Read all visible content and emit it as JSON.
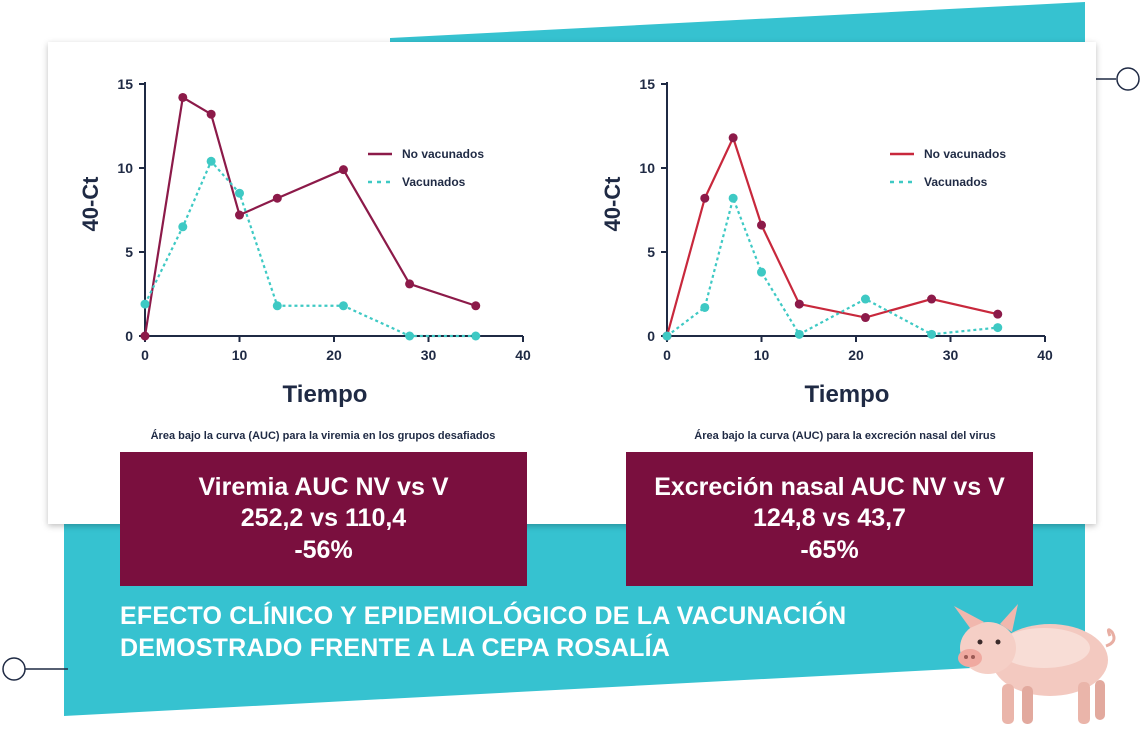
{
  "charts": {
    "left": {
      "caption": "Área bajo la curva (AUC) para la viremia en los grupos desafiados"
    },
    "right": {
      "caption": "Área bajo la curva (AUC) para la excreción nasal del virus"
    }
  },
  "auc": {
    "left": {
      "line1": "Viremia AUC NV vs V",
      "line2": "252,2 vs 110,4",
      "line3": "-56%"
    },
    "right": {
      "line1": "Excreción nasal AUC NV vs V",
      "line2": "124,8 vs 43,7",
      "line3": "-65%"
    }
  },
  "headline": {
    "line1": "EFECTO CLÍNICO Y EPIDEMIOLÓGICO DE LA VACUNACIÓN",
    "line2": "DEMOSTRADO FRENTE A LA CEPA ROSALÍA"
  },
  "colors": {
    "teal": "#36c2d0",
    "unvaccinated": "#8c1a49",
    "unvaccinated_right": "#c8283c",
    "vaccinated": "#3ec9c4",
    "axis": "#1f2a44",
    "box": "#7a0f3e"
  },
  "chart_data": [
    {
      "type": "line",
      "title": "",
      "xlabel": "Tiempo",
      "ylabel": "40-Ct",
      "xlim": [
        0,
        40
      ],
      "ylim": [
        0,
        15
      ],
      "xticks": [
        0,
        10,
        20,
        30,
        40
      ],
      "yticks": [
        0,
        5,
        10,
        15
      ],
      "legend": "top-right",
      "series": [
        {
          "name": "No vacunados",
          "style": "solid",
          "points": [
            [
              0,
              0
            ],
            [
              4,
              14.2
            ],
            [
              7,
              13.2
            ],
            [
              10,
              7.2
            ],
            [
              14,
              8.2
            ],
            [
              21,
              9.9
            ],
            [
              28,
              3.1
            ],
            [
              35,
              1.8
            ]
          ]
        },
        {
          "name": "Vacunados",
          "style": "dashed",
          "points": [
            [
              0,
              1.9
            ],
            [
              4,
              6.5
            ],
            [
              7,
              10.4
            ],
            [
              10,
              8.5
            ],
            [
              14,
              1.8
            ],
            [
              21,
              1.8
            ],
            [
              28,
              0
            ],
            [
              35,
              0
            ]
          ]
        }
      ]
    },
    {
      "type": "line",
      "title": "",
      "xlabel": "Tiempo",
      "ylabel": "40-Ct",
      "xlim": [
        0,
        40
      ],
      "ylim": [
        0,
        15
      ],
      "xticks": [
        0,
        10,
        20,
        30,
        40
      ],
      "yticks": [
        0,
        5,
        10,
        15
      ],
      "legend": "top-right",
      "series": [
        {
          "name": "No vacunados",
          "style": "solid",
          "points": [
            [
              0,
              0
            ],
            [
              4,
              8.2
            ],
            [
              7,
              11.8
            ],
            [
              10,
              6.6
            ],
            [
              14,
              1.9
            ],
            [
              21,
              1.1
            ],
            [
              28,
              2.2
            ],
            [
              35,
              1.3
            ]
          ]
        },
        {
          "name": "Vacunados",
          "style": "dashed",
          "points": [
            [
              0,
              0
            ],
            [
              4,
              1.7
            ],
            [
              7,
              8.2
            ],
            [
              10,
              3.8
            ],
            [
              14,
              0.1
            ],
            [
              21,
              2.2
            ],
            [
              28,
              0.1
            ],
            [
              35,
              0.5
            ]
          ]
        }
      ]
    }
  ]
}
